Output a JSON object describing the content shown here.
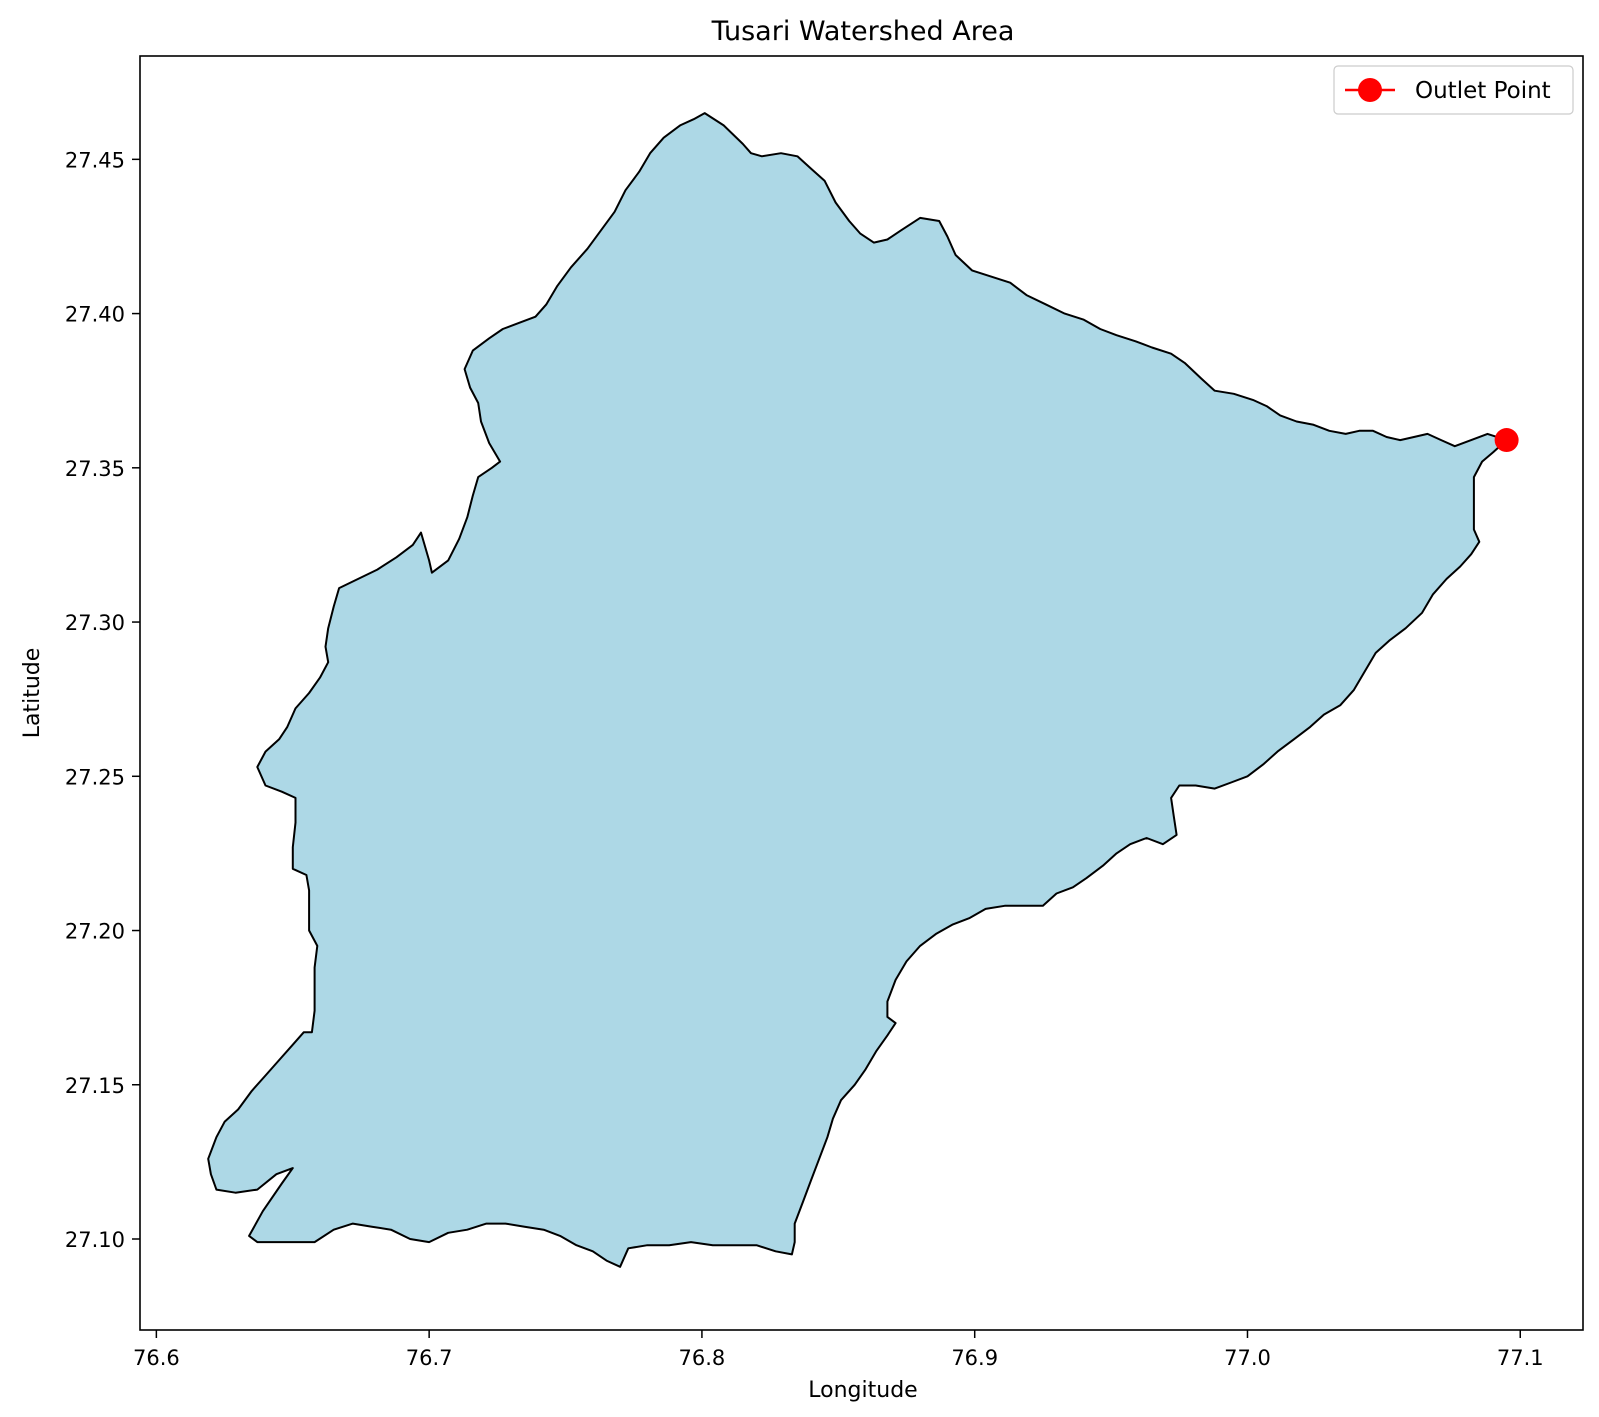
{
  "chart_data": {
    "type": "map",
    "title": "Tusari Watershed Area",
    "xlabel": "Longitude",
    "ylabel": "Latitude",
    "xlim": [
      76.594,
      77.123
    ],
    "ylim": [
      27.0705,
      27.4835
    ],
    "x_ticks": [
      76.6,
      76.7,
      76.8,
      76.9,
      77.0,
      77.1
    ],
    "x_tick_labels": [
      "76.6",
      "76.7",
      "76.8",
      "76.9",
      "77.0",
      "77.1"
    ],
    "y_ticks": [
      27.1,
      27.15,
      27.2,
      27.25,
      27.3,
      27.35,
      27.4,
      27.45
    ],
    "y_tick_labels": [
      "27.10",
      "27.15",
      "27.20",
      "27.25",
      "27.30",
      "27.35",
      "27.40",
      "27.45"
    ],
    "grid": false,
    "legend": {
      "placement": "top-right",
      "entries": [
        {
          "label": "Outlet Point",
          "color": "#ff0000",
          "marker": "circle"
        }
      ]
    },
    "watershed": {
      "fill_color": "#add8e6",
      "edge_color": "#000000",
      "boundary": [
        [
          76.801,
          27.465
        ],
        [
          76.808,
          27.461
        ],
        [
          76.815,
          27.455
        ],
        [
          76.818,
          27.452
        ],
        [
          76.822,
          27.451
        ],
        [
          76.829,
          27.452
        ],
        [
          76.835,
          27.451
        ],
        [
          76.84,
          27.447
        ],
        [
          76.845,
          27.443
        ],
        [
          76.849,
          27.436
        ],
        [
          76.854,
          27.43
        ],
        [
          76.858,
          27.426
        ],
        [
          76.863,
          27.423
        ],
        [
          76.868,
          27.424
        ],
        [
          76.873,
          27.427
        ],
        [
          76.88,
          27.431
        ],
        [
          76.887,
          27.43
        ],
        [
          76.89,
          27.425
        ],
        [
          76.893,
          27.419
        ],
        [
          76.899,
          27.414
        ],
        [
          76.906,
          27.412
        ],
        [
          76.913,
          27.41
        ],
        [
          76.919,
          27.406
        ],
        [
          76.926,
          27.403
        ],
        [
          76.933,
          27.4
        ],
        [
          76.94,
          27.398
        ],
        [
          76.946,
          27.395
        ],
        [
          76.952,
          27.393
        ],
        [
          76.959,
          27.391
        ],
        [
          76.965,
          27.389
        ],
        [
          76.972,
          27.387
        ],
        [
          76.977,
          27.384
        ],
        [
          76.983,
          27.379
        ],
        [
          76.988,
          27.375
        ],
        [
          76.995,
          27.374
        ],
        [
          77.002,
          27.372
        ],
        [
          77.007,
          27.37
        ],
        [
          77.012,
          27.367
        ],
        [
          77.018,
          27.365
        ],
        [
          77.024,
          27.364
        ],
        [
          77.03,
          27.362
        ],
        [
          77.036,
          27.361
        ],
        [
          77.041,
          27.362
        ],
        [
          77.046,
          27.362
        ],
        [
          77.051,
          27.36
        ],
        [
          77.056,
          27.359
        ],
        [
          77.061,
          27.36
        ],
        [
          77.066,
          27.361
        ],
        [
          77.071,
          27.359
        ],
        [
          77.076,
          27.357
        ],
        [
          77.082,
          27.359
        ],
        [
          77.088,
          27.361
        ],
        [
          77.095,
          27.359
        ],
        [
          77.09,
          27.355
        ],
        [
          77.086,
          27.352
        ],
        [
          77.083,
          27.347
        ],
        [
          77.083,
          27.341
        ],
        [
          77.083,
          27.335
        ],
        [
          77.083,
          27.33
        ],
        [
          77.085,
          27.326
        ],
        [
          77.082,
          27.322
        ],
        [
          77.078,
          27.318
        ],
        [
          77.073,
          27.314
        ],
        [
          77.068,
          27.309
        ],
        [
          77.064,
          27.303
        ],
        [
          77.058,
          27.298
        ],
        [
          77.052,
          27.294
        ],
        [
          77.047,
          27.29
        ],
        [
          77.043,
          27.284
        ],
        [
          77.039,
          27.278
        ],
        [
          77.034,
          27.273
        ],
        [
          77.028,
          27.27
        ],
        [
          77.023,
          27.266
        ],
        [
          77.017,
          27.262
        ],
        [
          77.011,
          27.258
        ],
        [
          77.006,
          27.254
        ],
        [
          77.0,
          27.25
        ],
        [
          76.994,
          27.248
        ],
        [
          76.988,
          27.246
        ],
        [
          76.981,
          27.247
        ],
        [
          76.975,
          27.247
        ],
        [
          76.972,
          27.243
        ],
        [
          76.973,
          27.237
        ],
        [
          76.974,
          27.231
        ],
        [
          76.969,
          27.228
        ],
        [
          76.963,
          27.23
        ],
        [
          76.957,
          27.228
        ],
        [
          76.952,
          27.225
        ],
        [
          76.947,
          27.221
        ],
        [
          76.941,
          27.217
        ],
        [
          76.936,
          27.214
        ],
        [
          76.93,
          27.212
        ],
        [
          76.925,
          27.208
        ],
        [
          76.918,
          27.208
        ],
        [
          76.911,
          27.208
        ],
        [
          76.904,
          27.207
        ],
        [
          76.898,
          27.204
        ],
        [
          76.892,
          27.202
        ],
        [
          76.886,
          27.199
        ],
        [
          76.88,
          27.195
        ],
        [
          76.875,
          27.19
        ],
        [
          76.871,
          27.184
        ],
        [
          76.868,
          27.177
        ],
        [
          76.868,
          27.172
        ],
        [
          76.871,
          27.17
        ],
        [
          76.868,
          27.166
        ],
        [
          76.864,
          27.161
        ],
        [
          76.86,
          27.155
        ],
        [
          76.856,
          27.15
        ],
        [
          76.851,
          27.145
        ],
        [
          76.848,
          27.139
        ],
        [
          76.846,
          27.133
        ],
        [
          76.843,
          27.126
        ],
        [
          76.84,
          27.119
        ],
        [
          76.837,
          27.112
        ],
        [
          76.834,
          27.105
        ],
        [
          76.834,
          27.099
        ],
        [
          76.833,
          27.095
        ],
        [
          76.827,
          27.096
        ],
        [
          76.82,
          27.098
        ],
        [
          76.812,
          27.098
        ],
        [
          76.804,
          27.098
        ],
        [
          76.796,
          27.099
        ],
        [
          76.788,
          27.098
        ],
        [
          76.78,
          27.098
        ],
        [
          76.773,
          27.097
        ],
        [
          76.77,
          27.091
        ],
        [
          76.765,
          27.093
        ],
        [
          76.76,
          27.096
        ],
        [
          76.754,
          27.098
        ],
        [
          76.748,
          27.101
        ],
        [
          76.742,
          27.103
        ],
        [
          76.735,
          27.104
        ],
        [
          76.728,
          27.105
        ],
        [
          76.721,
          27.105
        ],
        [
          76.714,
          27.103
        ],
        [
          76.707,
          27.102
        ],
        [
          76.7,
          27.099
        ],
        [
          76.693,
          27.1
        ],
        [
          76.686,
          27.103
        ],
        [
          76.679,
          27.104
        ],
        [
          76.672,
          27.105
        ],
        [
          76.665,
          27.103
        ],
        [
          76.658,
          27.099
        ],
        [
          76.651,
          27.099
        ],
        [
          76.644,
          27.099
        ],
        [
          76.637,
          27.099
        ],
        [
          76.634,
          27.101
        ],
        [
          76.639,
          27.109
        ],
        [
          76.646,
          27.118
        ],
        [
          76.65,
          27.123
        ],
        [
          76.644,
          27.121
        ],
        [
          76.637,
          27.116
        ],
        [
          76.629,
          27.115
        ],
        [
          76.622,
          27.116
        ],
        [
          76.62,
          27.121
        ],
        [
          76.619,
          27.126
        ],
        [
          76.622,
          27.133
        ],
        [
          76.625,
          27.138
        ],
        [
          76.63,
          27.142
        ],
        [
          76.635,
          27.148
        ],
        [
          76.64,
          27.153
        ],
        [
          76.645,
          27.158
        ],
        [
          76.65,
          27.163
        ],
        [
          76.654,
          27.167
        ],
        [
          76.657,
          27.167
        ],
        [
          76.658,
          27.174
        ],
        [
          76.658,
          27.182
        ],
        [
          76.658,
          27.188
        ],
        [
          76.659,
          27.195
        ],
        [
          76.656,
          27.2
        ],
        [
          76.656,
          27.206
        ],
        [
          76.656,
          27.213
        ],
        [
          76.655,
          27.218
        ],
        [
          76.65,
          27.22
        ],
        [
          76.65,
          27.227
        ],
        [
          76.651,
          27.235
        ],
        [
          76.651,
          27.243
        ],
        [
          76.646,
          27.245
        ],
        [
          76.64,
          27.247
        ],
        [
          76.637,
          27.253
        ],
        [
          76.64,
          27.258
        ],
        [
          76.645,
          27.262
        ],
        [
          76.648,
          27.266
        ],
        [
          76.651,
          27.272
        ],
        [
          76.656,
          27.277
        ],
        [
          76.66,
          27.282
        ],
        [
          76.663,
          27.287
        ],
        [
          76.662,
          27.292
        ],
        [
          76.663,
          27.298
        ],
        [
          76.665,
          27.305
        ],
        [
          76.667,
          27.311
        ],
        [
          76.674,
          27.314
        ],
        [
          76.681,
          27.317
        ],
        [
          76.688,
          27.321
        ],
        [
          76.694,
          27.325
        ],
        [
          76.697,
          27.329
        ],
        [
          76.7,
          27.32
        ],
        [
          76.701,
          27.316
        ],
        [
          76.707,
          27.32
        ],
        [
          76.711,
          27.327
        ],
        [
          76.714,
          27.334
        ],
        [
          76.716,
          27.341
        ],
        [
          76.718,
          27.347
        ],
        [
          76.723,
          27.35
        ],
        [
          76.726,
          27.352
        ],
        [
          76.722,
          27.358
        ],
        [
          76.719,
          27.365
        ],
        [
          76.718,
          27.371
        ],
        [
          76.715,
          27.376
        ],
        [
          76.713,
          27.382
        ],
        [
          76.716,
          27.388
        ],
        [
          76.722,
          27.392
        ],
        [
          76.727,
          27.395
        ],
        [
          76.733,
          27.397
        ],
        [
          76.739,
          27.399
        ],
        [
          76.743,
          27.403
        ],
        [
          76.747,
          27.409
        ],
        [
          76.752,
          27.415
        ],
        [
          76.758,
          27.421
        ],
        [
          76.763,
          27.427
        ],
        [
          76.768,
          27.433
        ],
        [
          76.772,
          27.44
        ],
        [
          76.777,
          27.446
        ],
        [
          76.781,
          27.452
        ],
        [
          76.786,
          27.457
        ],
        [
          76.792,
          27.461
        ],
        [
          76.797,
          27.463
        ],
        [
          76.801,
          27.465
        ]
      ]
    },
    "outlet_point": {
      "label": "Outlet Point",
      "lon": 77.095,
      "lat": 27.359,
      "color": "#ff0000"
    }
  }
}
